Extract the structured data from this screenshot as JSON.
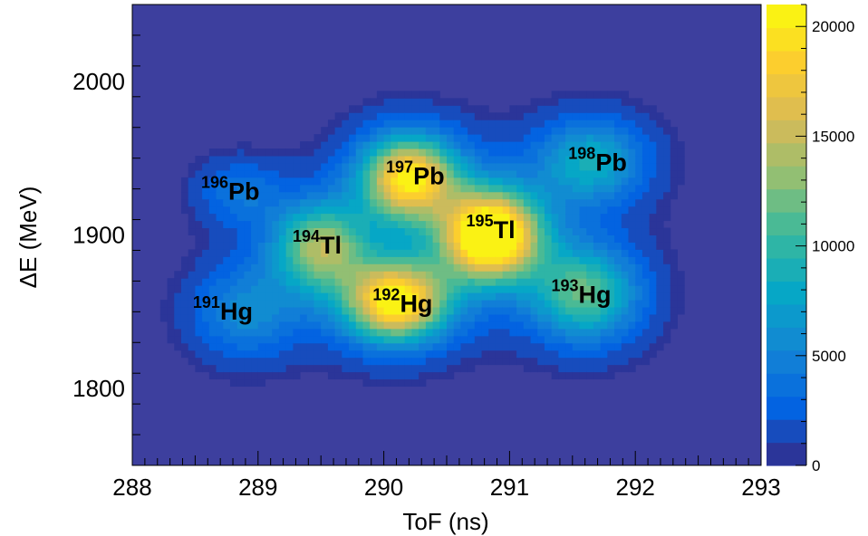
{
  "chart_data": {
    "type": "heatmap",
    "title": "",
    "xlabel": "ToF (ns)",
    "ylabel": "ΔE (MeV)",
    "xlim": [
      288,
      293
    ],
    "ylim": [
      1750,
      2050
    ],
    "x_ticks": [
      "288",
      "289",
      "290",
      "291",
      "292",
      "293"
    ],
    "x_tick_values": [
      288,
      289,
      290,
      291,
      292,
      293
    ],
    "y_ticks": [
      "1800",
      "1900",
      "2000"
    ],
    "y_tick_values": [
      1800,
      1900,
      2000
    ],
    "colorbar": {
      "min": 0,
      "max": 21000,
      "tick_values": [
        0,
        5000,
        10000,
        15000,
        20000
      ],
      "tick_labels": [
        "0",
        "5000",
        "10000",
        "15000",
        "20000"
      ],
      "colors": [
        "#352a87",
        "#0363e1",
        "#1485d4",
        "#06a7c6",
        "#38b99e",
        "#92bf73",
        "#d9ba56",
        "#fcce2e",
        "#f9fb0e"
      ]
    },
    "background_color": "#3d3f9e",
    "clusters": [
      {
        "label_mass": "191",
        "label_element": "Hg",
        "tof": 288.9,
        "de": 1850,
        "peak": 4500,
        "sx": 0.28,
        "sy": 20
      },
      {
        "label_mass": "192",
        "label_element": "Hg",
        "tof": 290.1,
        "de": 1857,
        "peak": 17500,
        "sx": 0.27,
        "sy": 17
      },
      {
        "label_mass": "193",
        "label_element": "Hg",
        "tof": 291.6,
        "de": 1862,
        "peak": 9500,
        "sx": 0.28,
        "sy": 20
      },
      {
        "label_mass": "194",
        "label_element": "Tl",
        "tof": 289.5,
        "de": 1892,
        "peak": 11000,
        "sx": 0.25,
        "sy": 19
      },
      {
        "label_mass": "195",
        "label_element": "Tl",
        "tof": 290.85,
        "de": 1900,
        "peak": 21000,
        "sx": 0.26,
        "sy": 19
      },
      {
        "label_mass": "196",
        "label_element": "Pb",
        "tof": 288.85,
        "de": 1928,
        "peak": 3200,
        "sx": 0.22,
        "sy": 14
      },
      {
        "label_mass": "197",
        "label_element": "Pb",
        "tof": 290.2,
        "de": 1937,
        "peak": 16500,
        "sx": 0.25,
        "sy": 18
      },
      {
        "label_mass": "198",
        "label_element": "Pb",
        "tof": 291.65,
        "de": 1948,
        "peak": 7000,
        "sx": 0.28,
        "sy": 18
      }
    ],
    "labels": [
      {
        "mass": "196",
        "element": "Pb",
        "tof": 288.78,
        "de": 1930
      },
      {
        "mass": "197",
        "element": "Pb",
        "tof": 290.25,
        "de": 1940
      },
      {
        "mass": "198",
        "element": "Pb",
        "tof": 291.7,
        "de": 1949
      },
      {
        "mass": "194",
        "element": "Tl",
        "tof": 289.47,
        "de": 1895
      },
      {
        "mass": "195",
        "element": "Tl",
        "tof": 290.85,
        "de": 1905
      },
      {
        "mass": "191",
        "element": "Hg",
        "tof": 288.72,
        "de": 1852
      },
      {
        "mass": "192",
        "element": "Hg",
        "tof": 290.15,
        "de": 1857
      },
      {
        "mass": "193",
        "element": "Hg",
        "tof": 291.57,
        "de": 1863
      }
    ]
  }
}
